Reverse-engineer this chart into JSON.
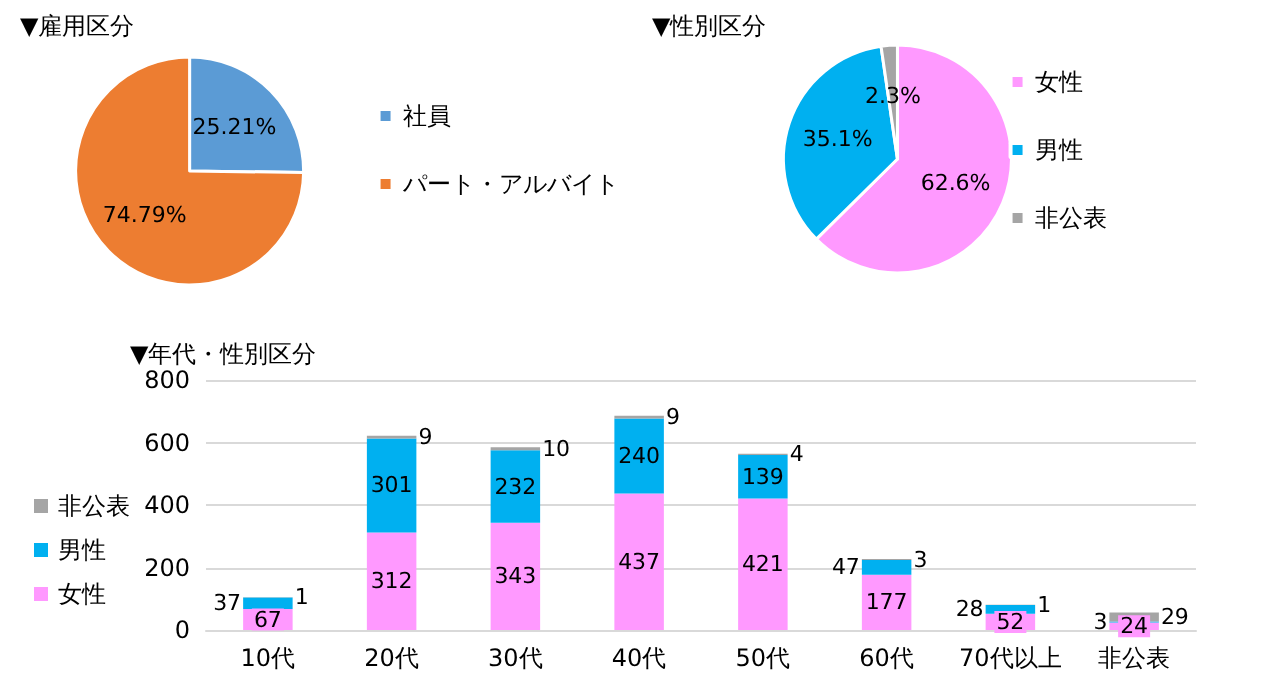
{
  "chart_data": [
    {
      "type": "pie",
      "title": "▼雇用区分",
      "categories": [
        "社員",
        "パート・アルバイト"
      ],
      "values": [
        25.21,
        74.79
      ],
      "colors": [
        "#5b9bd5",
        "#ed7d31"
      ],
      "value_labels": [
        "25.21%",
        "74.79%"
      ],
      "legend": "right"
    },
    {
      "type": "pie",
      "title": "▼性別区分",
      "categories": [
        "女性",
        "男性",
        "非公表"
      ],
      "values": [
        62.6,
        35.1,
        2.3
      ],
      "colors": [
        "#ff99ff",
        "#00b0f0",
        "#a5a5a5"
      ],
      "value_labels": [
        "62.6%",
        "35.1%",
        "2.3%"
      ],
      "legend": "right"
    },
    {
      "type": "bar",
      "title": "▼年代・性別区分",
      "stacked": true,
      "categories": [
        "10代",
        "20代",
        "30代",
        "40代",
        "50代",
        "60代",
        "70代以上",
        "非公表"
      ],
      "series": [
        {
          "name": "女性",
          "color": "#ff99ff",
          "values": [
            67,
            312,
            343,
            437,
            421,
            177,
            52,
            24
          ]
        },
        {
          "name": "男性",
          "color": "#00b0f0",
          "values": [
            37,
            301,
            232,
            240,
            139,
            47,
            28,
            3
          ]
        },
        {
          "name": "非公表",
          "color": "#a5a5a5",
          "values": [
            1,
            9,
            10,
            9,
            4,
            3,
            1,
            29
          ]
        }
      ],
      "ylim": [
        0,
        800
      ],
      "yticks": [
        0,
        200,
        400,
        600,
        800
      ],
      "grid": "y",
      "data_labels": true,
      "legend": "left"
    }
  ]
}
